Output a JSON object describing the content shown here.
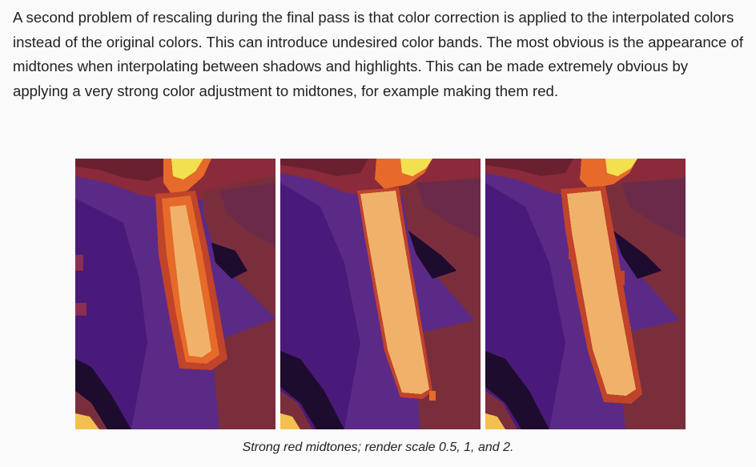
{
  "article": {
    "paragraph": "A second problem of rescaling during the final pass is that color correction is applied to the interpolated colors instead of the original colors. This can introduce undesired color bands. The most obvious is the appearance of midtones when interpolating between shadows and highlights. This can be made extremely obvious by applying a very strong color adjustment to midtones, for example making them red."
  },
  "figure": {
    "caption": "Strong red midtones; render scale 0.5, 1, and 2.",
    "panels": [
      {
        "render_scale": 0.5
      },
      {
        "render_scale": 1
      },
      {
        "render_scale": 2
      }
    ]
  },
  "colors": {
    "background": "#fafafa",
    "text": "#222222",
    "deep_purple": "#4a1a7a",
    "purple": "#5a2a86",
    "dark_shadow": "#1e0c2e",
    "plum": "#6b2a5a",
    "brown": "#7a2e3c",
    "red_midtone": "#c0432a",
    "orange": "#e66a2a",
    "peach_highlight": "#f0b26a",
    "yellow": "#f2e050"
  }
}
